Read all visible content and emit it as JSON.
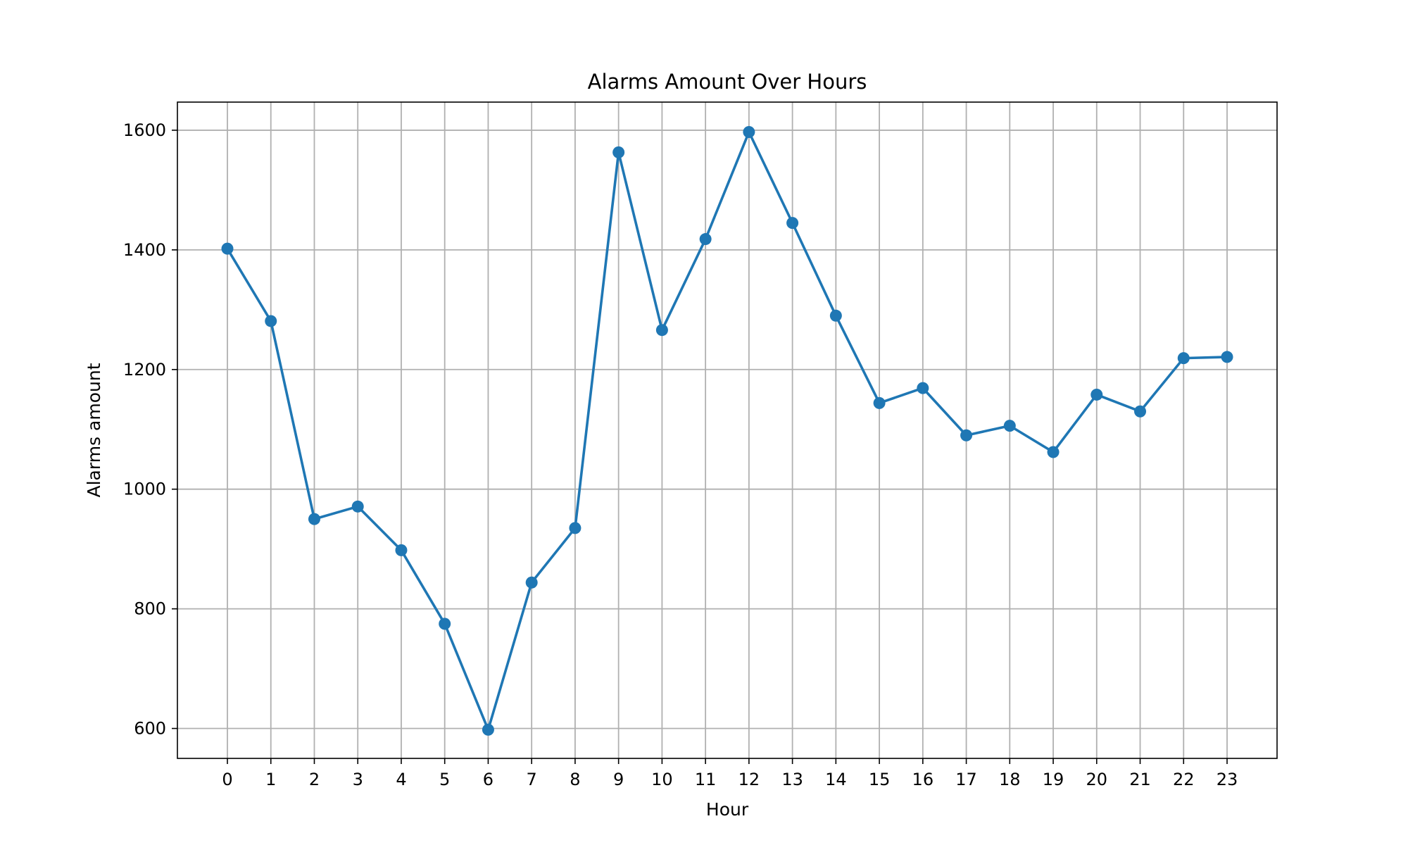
{
  "chart_data": {
    "type": "line",
    "title": "Alarms Amount Over Hours",
    "xlabel": "Hour",
    "ylabel": "Alarms amount",
    "x": [
      0,
      1,
      2,
      3,
      4,
      5,
      6,
      7,
      8,
      9,
      10,
      11,
      12,
      13,
      14,
      15,
      16,
      17,
      18,
      19,
      20,
      21,
      22,
      23
    ],
    "series": [
      {
        "values": [
          1402,
          1281,
          950,
          971,
          898,
          775,
          598,
          844,
          935,
          1563,
          1266,
          1418,
          1597,
          1445,
          1290,
          1144,
          1169,
          1090,
          1106,
          1062,
          1158,
          1130,
          1219,
          1221
        ],
        "color": "#1f77b4",
        "marker": "circle"
      }
    ],
    "xticks": [
      "0",
      "1",
      "2",
      "3",
      "4",
      "5",
      "6",
      "7",
      "8",
      "9",
      "10",
      "11",
      "12",
      "13",
      "14",
      "15",
      "16",
      "17",
      "18",
      "19",
      "20",
      "21",
      "22",
      "23"
    ],
    "yticks": [
      "600",
      "800",
      "1000",
      "1200",
      "1400",
      "1600"
    ],
    "xlim": [
      -1.15,
      24.15
    ],
    "ylim": [
      550,
      1647
    ],
    "grid": true,
    "legend": "none"
  }
}
